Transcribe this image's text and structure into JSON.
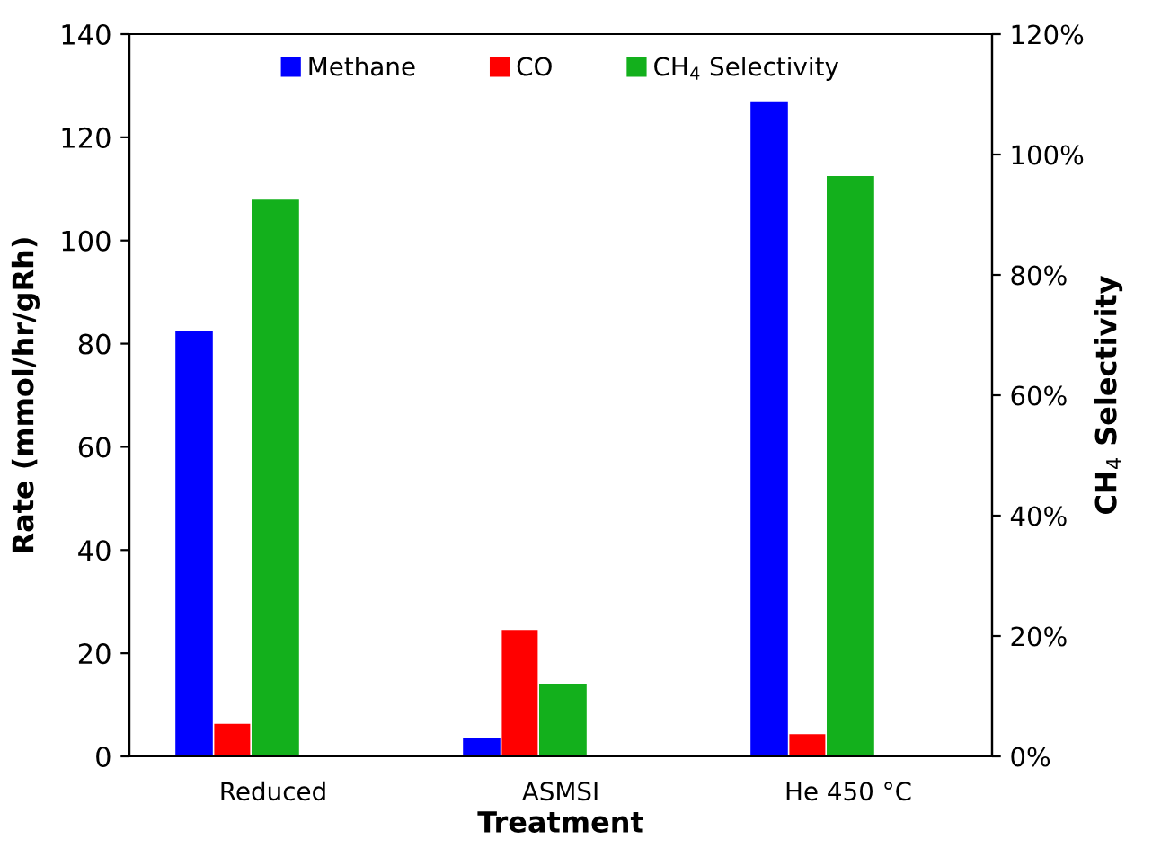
{
  "chart_data": {
    "type": "bar",
    "xlabel": "Treatment",
    "ylabel": "Rate (mmol/hr/gRh)",
    "y2label": "CH$_{4}$ Selectivity",
    "categories": [
      "Reduced",
      "ASMSI",
      "He 450 °C"
    ],
    "series": [
      {
        "name": "Methane",
        "color": "#0000ff",
        "values": [
          82.5,
          3.5,
          127
        ]
      },
      {
        "name": "CO",
        "color": "#ff0000",
        "values": [
          6.3,
          24.5,
          4.3
        ]
      },
      {
        "name": "CH$_{4}$ Selectivity",
        "color": "#13b01c",
        "values": [
          92.5,
          12.1,
          96.4
        ],
        "axis": "y2"
      }
    ],
    "ylim": [
      0,
      140
    ],
    "yticks": [
      0,
      20,
      40,
      60,
      80,
      100,
      120,
      140
    ],
    "y2lim": [
      0,
      120
    ],
    "y2ticks": [
      {
        "value": 0,
        "label": "0%"
      },
      {
        "value": 20,
        "label": "20%"
      },
      {
        "value": 40,
        "label": "40%"
      },
      {
        "value": 60,
        "label": "60%"
      },
      {
        "value": 80,
        "label": "80%"
      },
      {
        "value": 100,
        "label": "100%"
      },
      {
        "value": 120,
        "label": "120%"
      }
    ],
    "grid": false,
    "legend": "top"
  }
}
